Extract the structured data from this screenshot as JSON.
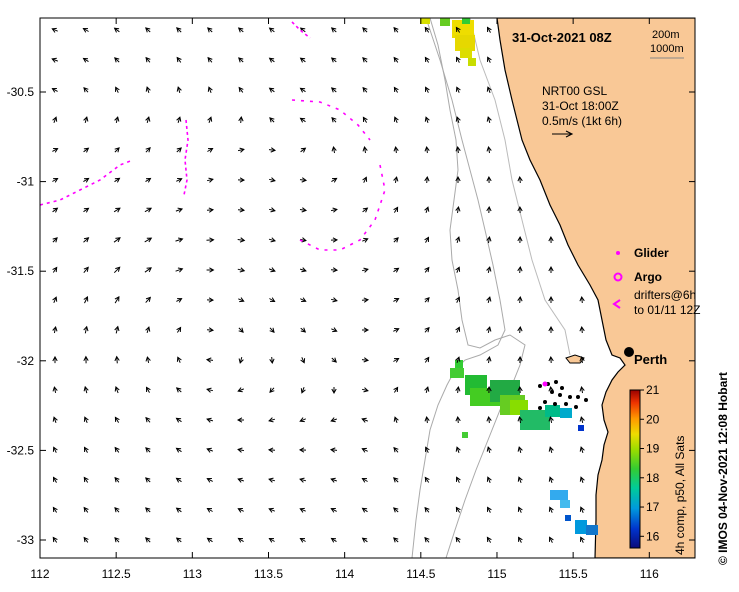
{
  "title": "31-Oct-2021 08Z",
  "depth_labels": [
    "200m",
    "1000m"
  ],
  "nrt": {
    "line1": "NRT00 GSL",
    "line2": "31-Oct 18:00Z",
    "line3": "0.5m/s (1kt 6h)"
  },
  "legend": {
    "glider": "Glider",
    "argo": "Argo",
    "drifters_line1": "drifters@6h",
    "drifters_line2": "to 01/11 12Z"
  },
  "city": "Perth",
  "colorbar": {
    "label": "4h comp, p50, All Sats",
    "ticks": [
      "16",
      "17",
      "18",
      "19",
      "20",
      "21"
    ],
    "range": [
      15.6,
      21
    ]
  },
  "credit": "© IMOS 04-Nov-2021 12:08 Hobart",
  "x_ticks": [
    "112",
    "112.5",
    "113",
    "113.5",
    "114",
    "114.5",
    "115",
    "115.5",
    "116"
  ],
  "y_ticks": [
    "-30.5",
    "-31",
    "-31.5",
    "-32",
    "-32.5",
    "-33"
  ],
  "colors": {
    "land": "#f9c896",
    "drifter": "#ff00ff",
    "arrow": "#000000"
  }
}
